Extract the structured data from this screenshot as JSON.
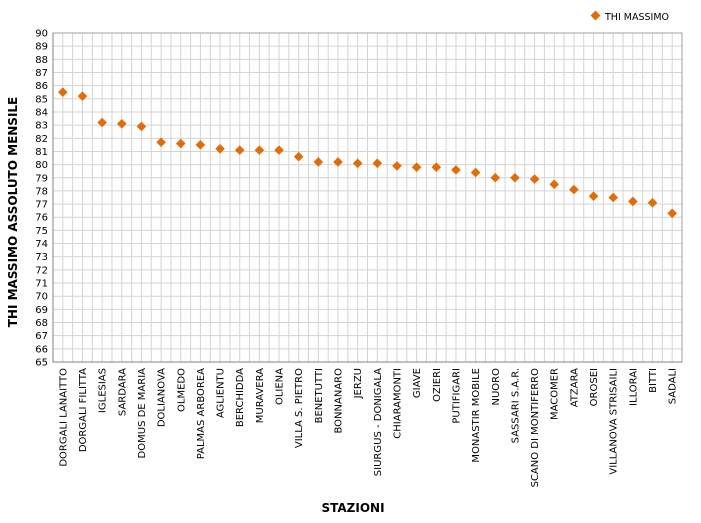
{
  "chart_data": {
    "type": "scatter",
    "title": "",
    "xlabel": "STAZIONI",
    "ylabel": "THI MASSIMO ASSOLUTO MENSILE",
    "ylim": [
      65,
      90
    ],
    "y_ticks": [
      65,
      66,
      67,
      68,
      69,
      70,
      71,
      72,
      73,
      74,
      75,
      76,
      77,
      78,
      79,
      80,
      81,
      82,
      83,
      84,
      85,
      86,
      87,
      88,
      89,
      90
    ],
    "grid": true,
    "legend_position": "top-right",
    "categories": [
      "DORGALI LANAITTO",
      "DORGALI FILITTA",
      "IGLESIAS",
      "SARDARA",
      "DOMUS DE MARIA",
      "DOLIANOVA",
      "OLMEDO",
      "PALMAS ARBOREA",
      "AGLIENTU",
      "BERCHIDDA",
      "MURAVERA",
      "OLIENA",
      "VILLA S. PIETRO",
      "BENETUTTI",
      "BONNANARO",
      "JERZU",
      "SIURGUS - DONIGALA",
      "CHIARAMONTI",
      "GIAVE",
      "OZIERI",
      "PUTIFIGARI",
      "MONASTIR MOBILE",
      "NUORO",
      "SASSARI S.A.R.",
      "SCANO DI MONTIFERRO",
      "MACOMER",
      "ATZARA",
      "OROSEI",
      "VILLANOVA STRISAILI",
      "ILLORAI",
      "BITTI",
      "SADALI"
    ],
    "series": [
      {
        "name": "THI MASSIMO",
        "color": "#E36C0A",
        "marker": "diamond",
        "values": [
          85.5,
          85.2,
          83.2,
          83.1,
          82.9,
          81.7,
          81.6,
          81.5,
          81.2,
          81.1,
          81.1,
          81.1,
          80.6,
          80.2,
          80.2,
          80.1,
          80.1,
          79.9,
          79.8,
          79.8,
          79.6,
          79.4,
          79.0,
          79.0,
          78.9,
          78.5,
          78.1,
          77.6,
          77.5,
          77.2,
          77.1,
          76.3
        ]
      }
    ]
  }
}
